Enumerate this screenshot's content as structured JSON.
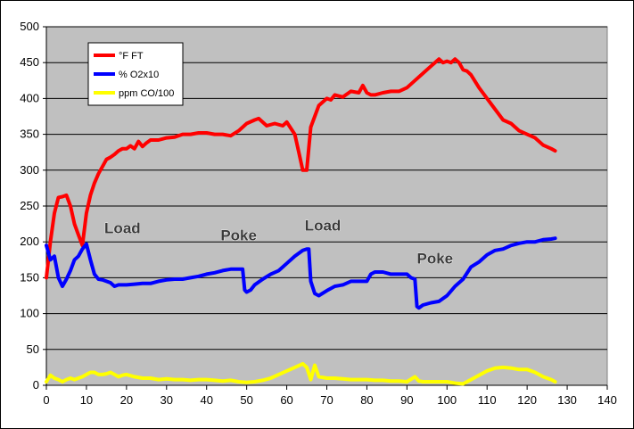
{
  "chart_data": {
    "type": "line",
    "title": "",
    "xlabel": "",
    "ylabel": "",
    "xlim": [
      0,
      140
    ],
    "ylim": [
      0,
      500
    ],
    "x_ticks": [
      "0",
      "10",
      "20",
      "30",
      "40",
      "50",
      "60",
      "70",
      "80",
      "90",
      "100",
      "110",
      "120",
      "130",
      "140"
    ],
    "y_ticks": [
      "0",
      "50",
      "100",
      "150",
      "200",
      "250",
      "300",
      "350",
      "400",
      "450",
      "500"
    ],
    "grid": "horizontal",
    "plot_background": "#c0c0c0",
    "legend_position": "top-left",
    "series": [
      {
        "name": "°F FT",
        "color": "#ff0000",
        "x": [
          0,
          1,
          2,
          3,
          4,
          5,
          6,
          7,
          8,
          9,
          10,
          11,
          12,
          13,
          14,
          15,
          16,
          17,
          18,
          19,
          20,
          21,
          22,
          23,
          24,
          25,
          26,
          28,
          30,
          32,
          34,
          36,
          38,
          40,
          42,
          44,
          46,
          48,
          50,
          52,
          53,
          55,
          57,
          59,
          60,
          62,
          63,
          64,
          65,
          66,
          67,
          68,
          69,
          70,
          71,
          72,
          74,
          76,
          78,
          79,
          80,
          81,
          82,
          84,
          86,
          88,
          90,
          92,
          94,
          96,
          97,
          98,
          99,
          100,
          101,
          102,
          103,
          104,
          105,
          106,
          108,
          110,
          112,
          114,
          116,
          118,
          120,
          122,
          124,
          126,
          127
        ],
        "y": [
          150,
          200,
          240,
          262,
          263,
          265,
          250,
          225,
          210,
          195,
          240,
          265,
          282,
          295,
          305,
          315,
          318,
          322,
          327,
          330,
          330,
          334,
          330,
          340,
          333,
          338,
          342,
          342,
          345,
          346,
          350,
          350,
          352,
          352,
          350,
          350,
          348,
          355,
          365,
          370,
          372,
          362,
          365,
          362,
          367,
          350,
          325,
          300,
          300,
          360,
          375,
          390,
          395,
          400,
          398,
          405,
          402,
          410,
          408,
          418,
          408,
          405,
          405,
          408,
          410,
          410,
          415,
          425,
          435,
          445,
          450,
          455,
          450,
          452,
          450,
          455,
          450,
          440,
          438,
          433,
          415,
          400,
          385,
          370,
          365,
          355,
          350,
          345,
          335,
          330,
          327
        ]
      },
      {
        "name": "% O2x10",
        "color": "#0000ff",
        "x": [
          0,
          1,
          2,
          3,
          4,
          5,
          6,
          7,
          8,
          9,
          10,
          11,
          12,
          13,
          14,
          15,
          16,
          17,
          18,
          19,
          20,
          22,
          24,
          26,
          28,
          30,
          32,
          34,
          36,
          38,
          40,
          42,
          44,
          46,
          48,
          49,
          49.5,
          50,
          51,
          52,
          54,
          56,
          58,
          60,
          62,
          64,
          65,
          65.5,
          66,
          67,
          68,
          70,
          72,
          74,
          76,
          78,
          80,
          80.5,
          81,
          82,
          84,
          86,
          88,
          90,
          91,
          92,
          92.5,
          93,
          94,
          96,
          98,
          100,
          102,
          104,
          106,
          108,
          110,
          112,
          114,
          116,
          118,
          120,
          122,
          124,
          126,
          127
        ],
        "y": [
          195,
          175,
          180,
          150,
          138,
          148,
          160,
          175,
          180,
          190,
          197,
          175,
          155,
          148,
          147,
          145,
          143,
          138,
          140,
          140,
          140,
          141,
          142,
          142,
          145,
          147,
          148,
          148,
          150,
          152,
          155,
          157,
          160,
          162,
          162,
          162,
          133,
          130,
          133,
          140,
          148,
          155,
          160,
          170,
          180,
          188,
          190,
          190,
          145,
          128,
          125,
          132,
          138,
          140,
          145,
          145,
          145,
          150,
          155,
          158,
          158,
          155,
          155,
          155,
          150,
          148,
          110,
          108,
          112,
          115,
          117,
          125,
          138,
          148,
          165,
          172,
          182,
          188,
          190,
          195,
          198,
          200,
          200,
          203,
          204,
          205
        ]
      },
      {
        "name": "ppm CO/100",
        "color": "#ffff00",
        "x": [
          0,
          1,
          2,
          3,
          4,
          5,
          6,
          7,
          8,
          9,
          10,
          11,
          12,
          13,
          14,
          15,
          16,
          17,
          18,
          19,
          20,
          22,
          24,
          26,
          28,
          30,
          32,
          34,
          36,
          38,
          40,
          42,
          44,
          46,
          48,
          50,
          52,
          54,
          56,
          58,
          60,
          62,
          64,
          65,
          66,
          67,
          68,
          70,
          72,
          74,
          76,
          78,
          80,
          82,
          84,
          86,
          88,
          90,
          92,
          93,
          94,
          96,
          98,
          100,
          102,
          104,
          106,
          108,
          110,
          112,
          114,
          116,
          118,
          120,
          122,
          124,
          126,
          127
        ],
        "y": [
          5,
          14,
          10,
          8,
          5,
          8,
          10,
          8,
          10,
          12,
          15,
          18,
          18,
          15,
          15,
          16,
          18,
          15,
          12,
          14,
          15,
          12,
          10,
          10,
          8,
          9,
          8,
          8,
          7,
          8,
          8,
          7,
          6,
          7,
          5,
          4,
          5,
          7,
          10,
          15,
          20,
          25,
          30,
          25,
          8,
          28,
          12,
          10,
          10,
          9,
          8,
          8,
          8,
          7,
          7,
          6,
          6,
          5,
          12,
          6,
          5,
          5,
          5,
          5,
          3,
          2,
          8,
          14,
          20,
          24,
          25,
          24,
          22,
          22,
          18,
          12,
          8,
          5
        ]
      }
    ],
    "annotations": [
      {
        "text": "Load",
        "x": 19,
        "y": 212
      },
      {
        "text": "Poke",
        "x": 48,
        "y": 202
      },
      {
        "text": "Load",
        "x": 69,
        "y": 216
      },
      {
        "text": "Poke",
        "x": 97,
        "y": 170
      }
    ]
  }
}
